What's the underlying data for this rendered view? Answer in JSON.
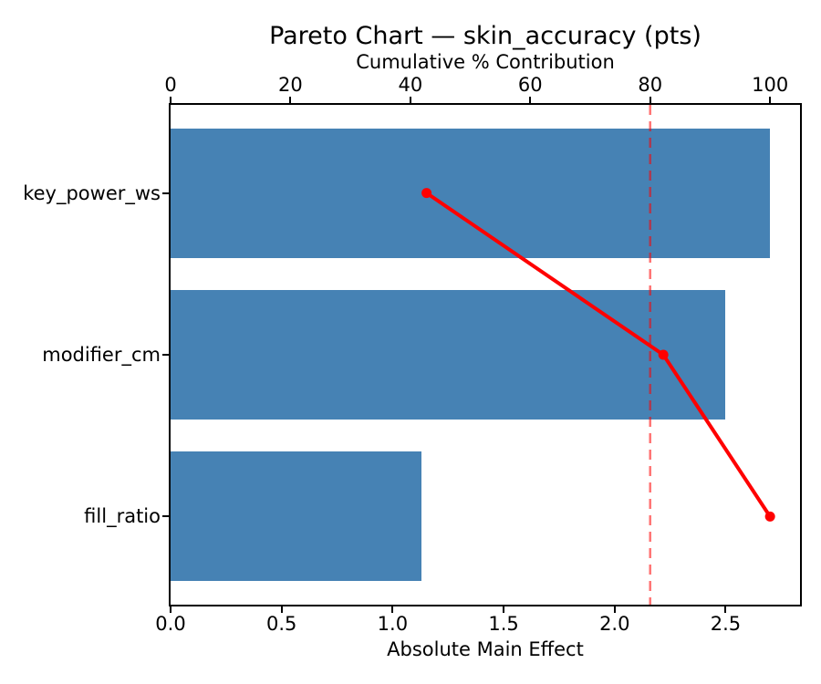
{
  "chart_data": {
    "type": "bar",
    "subtype": "pareto",
    "orientation": "horizontal",
    "title": "Pareto Chart — skin_accuracy (pts)",
    "categories": [
      "key_power_ws",
      "modifier_cm",
      "fill_ratio"
    ],
    "series": [
      {
        "name": "Absolute Main Effect",
        "role": "bar",
        "values": [
          2.7,
          2.5,
          1.13
        ]
      },
      {
        "name": "Cumulative % Contribution",
        "role": "line",
        "values": [
          42.7,
          82.2,
          100.0
        ]
      }
    ],
    "bar_axis": {
      "position": "bottom",
      "label": "Absolute Main Effect",
      "tick_values": [
        0,
        0.5,
        1.0,
        1.5,
        2.0,
        2.5
      ],
      "tick_labels": [
        "0.0",
        "0.5",
        "1.0",
        "1.5",
        "2.0",
        "2.5"
      ],
      "lim": [
        0,
        2.835
      ]
    },
    "pct_axis": {
      "position": "top",
      "label": "Cumulative % Contribution",
      "tick_values": [
        0,
        20,
        40,
        60,
        80,
        100
      ],
      "tick_labels": [
        "0",
        "20",
        "40",
        "60",
        "80",
        "100"
      ],
      "lim": [
        0,
        105
      ]
    },
    "threshold": {
      "value": 80,
      "axis": "pct",
      "style": "dashed"
    },
    "colors": {
      "bar": "#4682b4",
      "line": "#ff0000",
      "threshold": "rgba(255,0,0,0.55)",
      "text": "#000000",
      "spine": "#000000"
    },
    "grid": false,
    "legend": "none",
    "bar_thickness_fraction": 0.8,
    "category_span_units": 3.09,
    "category_edge_offset": 0.545
  }
}
